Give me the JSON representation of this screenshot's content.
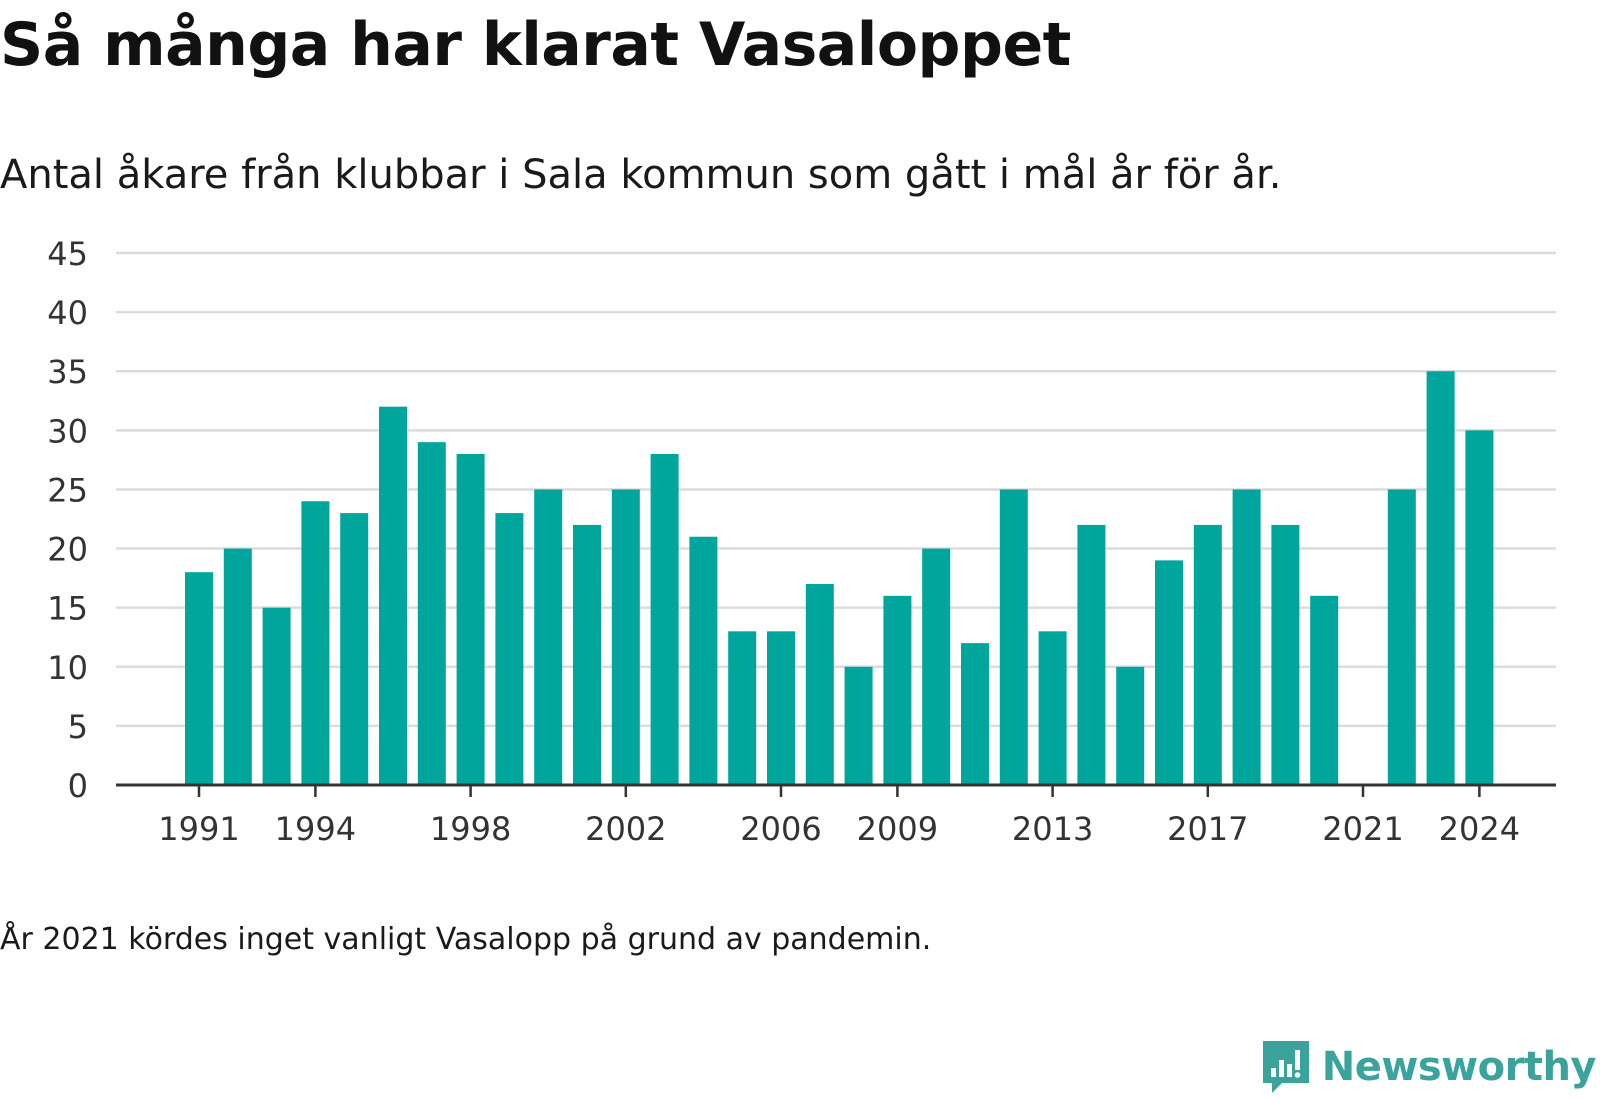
{
  "header": {
    "title": "Så många har klarat Vasaloppet",
    "subtitle": "Antal åkare från klubbar i Sala kommun som gått i mål år för år."
  },
  "footer": {
    "note": "År 2021 kördes inget vanligt Vasalopp på grund av pandemin.",
    "brand": "Newsworthy",
    "brand_icon": "bar-chart-speech-icon"
  },
  "colors": {
    "bar": "#00a59b",
    "grid": "#dcdcdc",
    "axis": "#333333",
    "brand": "#3aa39b"
  },
  "chart_data": {
    "type": "bar",
    "title": "Så många har klarat Vasaloppet",
    "subtitle": "Antal åkare från klubbar i Sala kommun som gått i mål år för år.",
    "xlabel": "",
    "ylabel": "",
    "ylim": [
      0,
      45
    ],
    "yticks": [
      0,
      5,
      10,
      15,
      20,
      25,
      30,
      35,
      40,
      45
    ],
    "xticks": [
      1991,
      1994,
      1998,
      2002,
      2006,
      2009,
      2013,
      2017,
      2021,
      2024
    ],
    "grid": true,
    "legend": "none",
    "categories": [
      1991,
      1992,
      1993,
      1994,
      1995,
      1996,
      1997,
      1998,
      1999,
      2000,
      2001,
      2002,
      2003,
      2004,
      2005,
      2006,
      2007,
      2008,
      2009,
      2010,
      2011,
      2012,
      2013,
      2014,
      2015,
      2016,
      2017,
      2018,
      2019,
      2020,
      2021,
      2022,
      2023,
      2024
    ],
    "values": [
      18,
      20,
      15,
      24,
      23,
      32,
      29,
      28,
      23,
      25,
      22,
      25,
      28,
      21,
      13,
      13,
      17,
      10,
      16,
      20,
      12,
      25,
      13,
      22,
      10,
      19,
      22,
      25,
      22,
      16,
      null,
      25,
      35,
      30
    ]
  }
}
